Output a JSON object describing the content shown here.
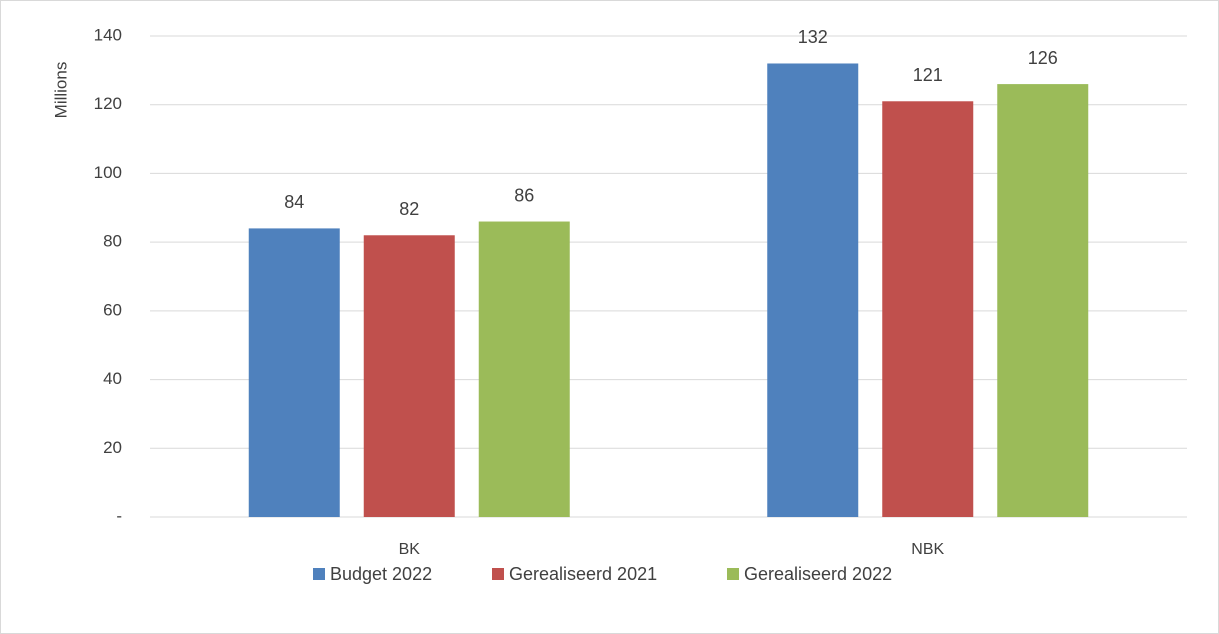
{
  "chart_data": {
    "type": "bar",
    "y_label": "Millions",
    "categories": [
      "BK",
      "NBK"
    ],
    "series": [
      {
        "name": "Budget 2022",
        "color": "#4f81bd",
        "values": [
          84,
          132
        ]
      },
      {
        "name": "Gerealiseerd 2021",
        "color": "#c0504d",
        "values": [
          82,
          121
        ]
      },
      {
        "name": "Gerealiseerd 2022",
        "color": "#9bbb59",
        "values": [
          86,
          126
        ]
      }
    ],
    "ylim": [
      0,
      140
    ],
    "yticks": [
      {
        "value": 0,
        "label": "-"
      },
      20,
      40,
      60,
      80,
      100,
      120,
      140
    ],
    "grid": true,
    "legend": "bottom"
  }
}
